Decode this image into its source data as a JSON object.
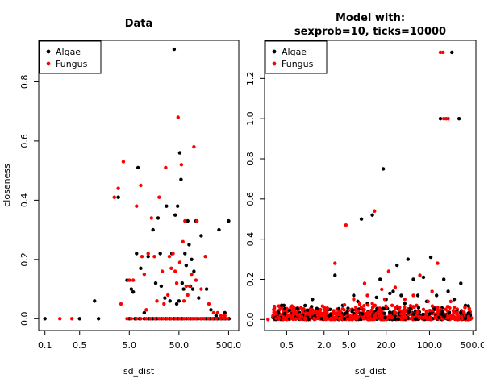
{
  "colors": {
    "Algae": "#000000",
    "Fungus": "#ff0000"
  },
  "chart_data": [
    {
      "type": "scatter",
      "title": "Data",
      "xlabel": "sd_dist",
      "ylabel": "closeness",
      "xscale": "log",
      "xlim": [
        0.075,
        800
      ],
      "ylim": [
        -0.04,
        0.94
      ],
      "xticks": [
        "0.1",
        "0.5",
        "5.0",
        "50.0",
        "500.0"
      ],
      "xtick_values": [
        0.1,
        0.5,
        5,
        50,
        500
      ],
      "yticks": [
        "0.0",
        "0.2",
        "0.4",
        "0.6",
        "0.8"
      ],
      "ytick_values": [
        0,
        0.2,
        0.4,
        0.6,
        0.8
      ],
      "legend": {
        "position": "top-left",
        "entries": [
          "Algae",
          "Fungus"
        ]
      },
      "series": [
        {
          "name": "Algae",
          "points": [
            [
              0.1,
              0
            ],
            [
              0.5,
              0
            ],
            [
              1.0,
              0.06
            ],
            [
              1.2,
              0
            ],
            [
              3.0,
              0.41
            ],
            [
              4.5,
              0.13
            ],
            [
              5.5,
              0.1
            ],
            [
              6.0,
              0.09
            ],
            [
              7.0,
              0.22
            ],
            [
              7.5,
              0.51
            ],
            [
              8.5,
              0.17
            ],
            [
              10,
              0.02
            ],
            [
              12,
              0.21
            ],
            [
              15,
              0.3
            ],
            [
              17,
              0.12
            ],
            [
              19,
              0.34
            ],
            [
              21,
              0.22
            ],
            [
              22,
              0.11
            ],
            [
              26,
              0.07
            ],
            [
              28,
              0.38
            ],
            [
              33,
              0.06
            ],
            [
              36,
              0.22
            ],
            [
              40,
              0.91
            ],
            [
              42,
              0.35
            ],
            [
              45,
              0.05
            ],
            [
              47,
              0.38
            ],
            [
              50,
              0.06
            ],
            [
              52,
              0.56
            ],
            [
              55,
              0.47
            ],
            [
              58,
              0.12
            ],
            [
              62,
              0.1
            ],
            [
              66,
              0.22
            ],
            [
              70,
              0.18
            ],
            [
              75,
              0.33
            ],
            [
              80,
              0.25
            ],
            [
              85,
              0.11
            ],
            [
              90,
              0.2
            ],
            [
              95,
              0.1
            ],
            [
              100,
              0.16
            ],
            [
              110,
              0.33
            ],
            [
              125,
              0.07
            ],
            [
              140,
              0.28
            ],
            [
              180,
              0.1
            ],
            [
              220,
              0.03
            ],
            [
              280,
              0.01
            ],
            [
              320,
              0.3
            ],
            [
              420,
              0.02
            ],
            [
              500,
              0.33
            ],
            [
              5,
              0
            ],
            [
              6.5,
              0
            ],
            [
              8,
              0
            ],
            [
              10,
              0
            ],
            [
              12.5,
              0
            ],
            [
              15,
              0
            ],
            [
              18,
              0
            ],
            [
              22,
              0
            ],
            [
              27,
              0
            ],
            [
              33,
              0
            ],
            [
              40,
              0
            ],
            [
              48,
              0
            ],
            [
              58,
              0
            ],
            [
              70,
              0
            ],
            [
              85,
              0
            ],
            [
              100,
              0
            ],
            [
              120,
              0
            ],
            [
              145,
              0
            ],
            [
              175,
              0
            ],
            [
              210,
              0
            ],
            [
              250,
              0
            ],
            [
              300,
              0
            ],
            [
              360,
              0
            ],
            [
              430,
              0
            ],
            [
              510,
              0
            ]
          ]
        },
        {
          "name": "Fungus",
          "points": [
            [
              0.2,
              0
            ],
            [
              0.35,
              0
            ],
            [
              2.5,
              0.41
            ],
            [
              3.0,
              0.44
            ],
            [
              3.4,
              0.05
            ],
            [
              3.8,
              0.53
            ],
            [
              5.0,
              0.13
            ],
            [
              6.0,
              0.13
            ],
            [
              7.0,
              0.38
            ],
            [
              8.5,
              0.45
            ],
            [
              9,
              0.21
            ],
            [
              10,
              0.15
            ],
            [
              11,
              0.03
            ],
            [
              12,
              0.22
            ],
            [
              14,
              0.34
            ],
            [
              16,
              0.21
            ],
            [
              18,
              0.06
            ],
            [
              20,
              0.41
            ],
            [
              23,
              0.16
            ],
            [
              25,
              0.05
            ],
            [
              27,
              0.51
            ],
            [
              30,
              0.08
            ],
            [
              32,
              0.21
            ],
            [
              35,
              0.17
            ],
            [
              38,
              0.22
            ],
            [
              42,
              0.16
            ],
            [
              45,
              0.12
            ],
            [
              48,
              0.68
            ],
            [
              52,
              0.19
            ],
            [
              56,
              0.52
            ],
            [
              60,
              0.26
            ],
            [
              63,
              0.06
            ],
            [
              66,
              0.33
            ],
            [
              70,
              0.11
            ],
            [
              75,
              0.08
            ],
            [
              82,
              0.11
            ],
            [
              90,
              0.15
            ],
            [
              100,
              0.58
            ],
            [
              110,
              0.13
            ],
            [
              115,
              0.33
            ],
            [
              140,
              0.1
            ],
            [
              170,
              0.21
            ],
            [
              200,
              0.05
            ],
            [
              250,
              0.02
            ],
            [
              300,
              0.02
            ],
            [
              350,
              0.01
            ],
            [
              420,
              0.01
            ],
            [
              4.5,
              0
            ],
            [
              5.5,
              0
            ],
            [
              7,
              0
            ],
            [
              8.5,
              0
            ],
            [
              11,
              0
            ],
            [
              13.5,
              0
            ],
            [
              16.5,
              0
            ],
            [
              20,
              0
            ],
            [
              24,
              0
            ],
            [
              29,
              0
            ],
            [
              35,
              0
            ],
            [
              43,
              0
            ],
            [
              52,
              0
            ],
            [
              63,
              0
            ],
            [
              77,
              0
            ],
            [
              92,
              0
            ],
            [
              110,
              0
            ],
            [
              135,
              0
            ],
            [
              160,
              0
            ],
            [
              195,
              0
            ],
            [
              235,
              0
            ],
            [
              280,
              0
            ],
            [
              340,
              0
            ],
            [
              400,
              0
            ],
            [
              470,
              0
            ]
          ]
        }
      ]
    },
    {
      "type": "scatter",
      "title": "Model with:\nsexprob=10, ticks=10000",
      "xlabel": "sd_dist",
      "ylabel": "",
      "xscale": "log",
      "xlim": [
        0.22,
        560
      ],
      "ylim": [
        -0.055,
        1.39
      ],
      "xticks": [
        "0.5",
        "2.0",
        "5.0",
        "20.0",
        "100.0",
        "500.0"
      ],
      "xtick_values": [
        0.5,
        2,
        5,
        20,
        100,
        500
      ],
      "yticks": [
        "0.0",
        "0.2",
        "0.4",
        "0.6",
        "0.8",
        "1.0",
        "1.2"
      ],
      "ytick_values": [
        0,
        0.2,
        0.4,
        0.6,
        0.8,
        1.0,
        1.2
      ],
      "legend": {
        "position": "top-left",
        "entries": [
          "Algae",
          "Fungus"
        ]
      },
      "series": [
        {
          "name": "Algae",
          "points": [
            [
              0.3,
              0.01
            ],
            [
              0.45,
              0.07
            ],
            [
              0.6,
              0.03
            ],
            [
              0.8,
              0.02
            ],
            [
              1.0,
              0.04
            ],
            [
              1.3,
              0.1
            ],
            [
              1.6,
              0.03
            ],
            [
              2.0,
              0.06
            ],
            [
              2.5,
              0.05
            ],
            [
              3.0,
              0.22
            ],
            [
              4.0,
              0.07
            ],
            [
              4.8,
              0.02
            ],
            [
              6,
              0.12
            ],
            [
              7,
              0.09
            ],
            [
              8,
              0.5
            ],
            [
              8.5,
              0.05
            ],
            [
              10,
              0.08
            ],
            [
              12,
              0.52
            ],
            [
              14,
              0.11
            ],
            [
              16,
              0.2
            ],
            [
              18,
              0.75
            ],
            [
              20,
              0.1
            ],
            [
              23,
              0.13
            ],
            [
              26,
              0.14
            ],
            [
              30,
              0.27
            ],
            [
              35,
              0.12
            ],
            [
              40,
              0.08
            ],
            [
              45,
              0.3
            ],
            [
              55,
              0.2
            ],
            [
              65,
              0.12
            ],
            [
              80,
              0.21
            ],
            [
              90,
              0.09
            ],
            [
              105,
              0.31
            ],
            [
              130,
              0.12
            ],
            [
              150,
              1.0
            ],
            [
              170,
              0.2
            ],
            [
              200,
              0.14
            ],
            [
              230,
              1.33
            ],
            [
              250,
              0.1
            ],
            [
              300,
              1.0
            ],
            [
              320,
              0.18
            ],
            [
              380,
              0.07
            ],
            [
              420,
              0.03
            ]
          ]
        },
        {
          "name": "Fungus",
          "points": [
            [
              0.25,
              0
            ],
            [
              0.35,
              0.02
            ],
            [
              0.5,
              0
            ],
            [
              0.7,
              0.01
            ],
            [
              1.0,
              0.02
            ],
            [
              1.4,
              0
            ],
            [
              2.0,
              0.03
            ],
            [
              2.5,
              0.01
            ],
            [
              3.0,
              0.28
            ],
            [
              3.5,
              0.04
            ],
            [
              4.5,
              0.47
            ],
            [
              5,
              0.02
            ],
            [
              6,
              0.1
            ],
            [
              6.5,
              0.06
            ],
            [
              7.5,
              0.08
            ],
            [
              9,
              0.18
            ],
            [
              10,
              0.12
            ],
            [
              12,
              0.08
            ],
            [
              13,
              0.54
            ],
            [
              15,
              0.05
            ],
            [
              17,
              0.15
            ],
            [
              19,
              0.1
            ],
            [
              22,
              0.24
            ],
            [
              25,
              0.07
            ],
            [
              28,
              0.16
            ],
            [
              33,
              0.06
            ],
            [
              40,
              0.1
            ],
            [
              48,
              0.05
            ],
            [
              55,
              0.12
            ],
            [
              62,
              0.07
            ],
            [
              70,
              0.22
            ],
            [
              80,
              0.05
            ],
            [
              95,
              0.09
            ],
            [
              110,
              0.14
            ],
            [
              120,
              0.06
            ],
            [
              135,
              0.28
            ],
            [
              150,
              1.33
            ],
            [
              165,
              1.33
            ],
            [
              170,
              1.0
            ],
            [
              185,
              1.0
            ],
            [
              200,
              1.0
            ],
            [
              220,
              0.09
            ],
            [
              250,
              0.06
            ],
            [
              280,
              0.05
            ],
            [
              330,
              0.03
            ],
            [
              400,
              0.02
            ],
            [
              450,
              0.01
            ]
          ]
        }
      ]
    }
  ]
}
